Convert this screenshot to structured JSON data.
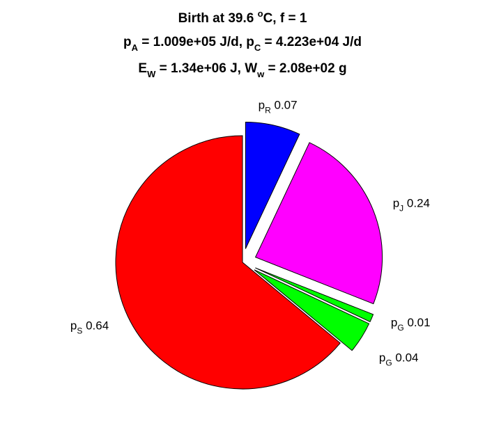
{
  "chart_data": {
    "type": "pie",
    "title": {
      "line1": {
        "prefix": "Birth at 39.6 ",
        "sup": "o",
        "suffix": "C, f = 1"
      },
      "line2": [
        {
          "text": "p",
          "role": "base"
        },
        {
          "text": "A",
          "role": "sub"
        },
        {
          "text": " = 1.009e+05 J/d, p",
          "role": "base"
        },
        {
          "text": "C",
          "role": "sub"
        },
        {
          "text": " = 4.223e+04 J/d",
          "role": "base"
        }
      ],
      "line3": [
        {
          "text": "E",
          "role": "base"
        },
        {
          "text": "W",
          "role": "sub"
        },
        {
          "text": " = 1.34e+06 J, W",
          "role": "base"
        },
        {
          "text": "w",
          "role": "sub"
        },
        {
          "text": " = 2.08e+02 g",
          "role": "base"
        }
      ]
    },
    "slices": [
      {
        "name": "p",
        "sub": "R",
        "value_label": "0.07",
        "value": 0.07,
        "color": "#0000ff",
        "exploded": true
      },
      {
        "name": "p",
        "sub": "J",
        "value_label": "0.24",
        "value": 0.24,
        "color": "#ff00ff",
        "exploded": true
      },
      {
        "name": "p",
        "sub": "G",
        "value_label": "0.01",
        "value": 0.01,
        "color": "#00ff00",
        "exploded": true
      },
      {
        "name": "p",
        "sub": "G",
        "value_label": "0.04",
        "value": 0.04,
        "color": "#00ff00",
        "exploded": true
      },
      {
        "name": "p",
        "sub": "S",
        "value_label": "0.64",
        "value": 0.64,
        "color": "#ff0000",
        "exploded": false
      }
    ],
    "start_angle": "top",
    "direction": "clockwise",
    "edge_color": "#000000"
  }
}
